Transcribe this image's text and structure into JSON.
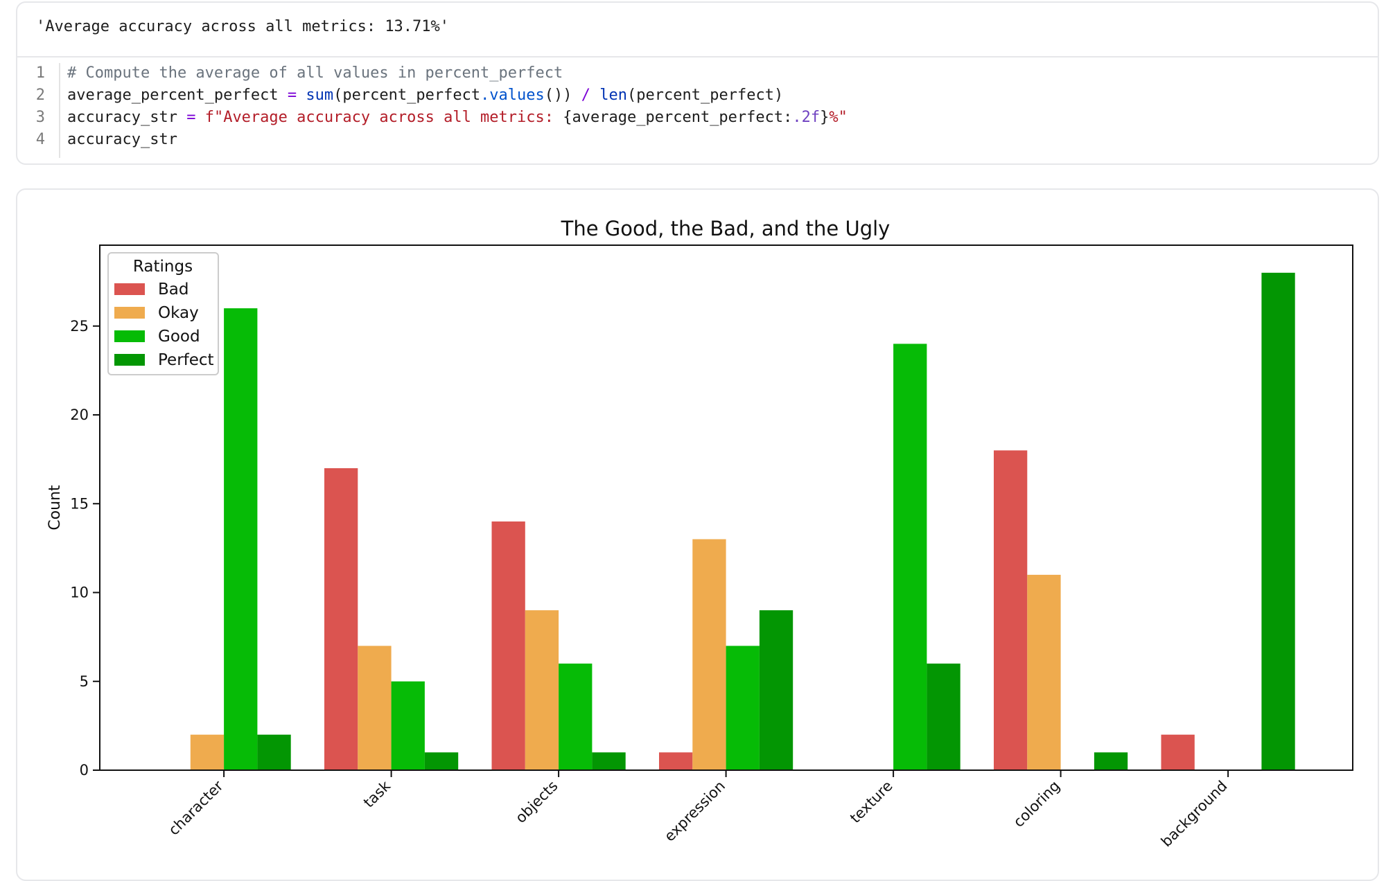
{
  "output": {
    "result_text": "'Average accuracy across all metrics: 13.71%'"
  },
  "code": {
    "lines": [
      {
        "number": "1"
      },
      {
        "number": "2"
      },
      {
        "number": "3"
      },
      {
        "number": "4"
      }
    ],
    "line1": {
      "comment": "# Compute the average of all values in percent_perfect"
    },
    "line2": {
      "var": "average_percent_perfect",
      "eq": " = ",
      "sum": "sum",
      "open": "(percent_perfect",
      "dot_values": ".values",
      "close": "())",
      "div": " / ",
      "len": "len",
      "arg": "(percent_perfect)"
    },
    "line3": {
      "var": "accuracy_str",
      "eq": " = ",
      "fstart": "f\"Average accuracy across all metrics: ",
      "expr": "{average_percent_perfect:",
      "fmt": ".2f",
      "exprend": "}",
      "fend": "%\""
    },
    "line4": {
      "var": "accuracy_str"
    }
  },
  "chart_data": {
    "type": "bar",
    "title": "The Good, the Bad, and the Ugly",
    "xlabel": "",
    "ylabel": "Count",
    "ylim": [
      0,
      29.5
    ],
    "yticks": [
      "0",
      "5",
      "10",
      "15",
      "20",
      "25"
    ],
    "categories": [
      "character",
      "task",
      "objects",
      "expression",
      "texture",
      "coloring",
      "background"
    ],
    "legend_title": "Ratings",
    "legend_position": "top-left",
    "grid": false,
    "series": [
      {
        "name": "Bad",
        "color": "#db5450",
        "values": [
          0,
          17,
          14,
          1,
          0,
          18,
          2
        ]
      },
      {
        "name": "Okay",
        "color": "#efab4e",
        "values": [
          2,
          7,
          9,
          13,
          0,
          11,
          0
        ]
      },
      {
        "name": "Good",
        "color": "#06bb06",
        "values": [
          26,
          5,
          6,
          7,
          24,
          0,
          0
        ]
      },
      {
        "name": "Perfect",
        "color": "#039603",
        "values": [
          2,
          1,
          1,
          9,
          6,
          1,
          28
        ]
      }
    ]
  }
}
